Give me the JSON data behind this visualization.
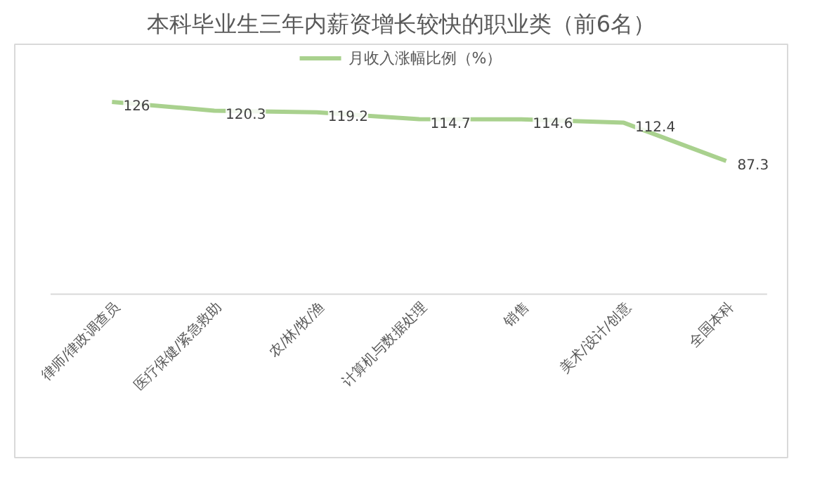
{
  "chart_data": {
    "type": "line",
    "title": "本科毕业生三年内薪资增长较快的职业类（前6名）",
    "categories": [
      "律师/律政调查员",
      "医疗保健/紧急救助",
      "农/林/牧/渔",
      "计算机与数据处理",
      "销售",
      "美术/设计/创意",
      "全国本科"
    ],
    "series": [
      {
        "name": "月收入涨幅比例（%）",
        "color": "#a9d18e",
        "values": [
          126,
          120.3,
          119.2,
          114.7,
          114.6,
          112.4,
          87.3
        ]
      }
    ],
    "data_labels": true,
    "legend": "top",
    "marker": "none",
    "line_style": "solid"
  }
}
